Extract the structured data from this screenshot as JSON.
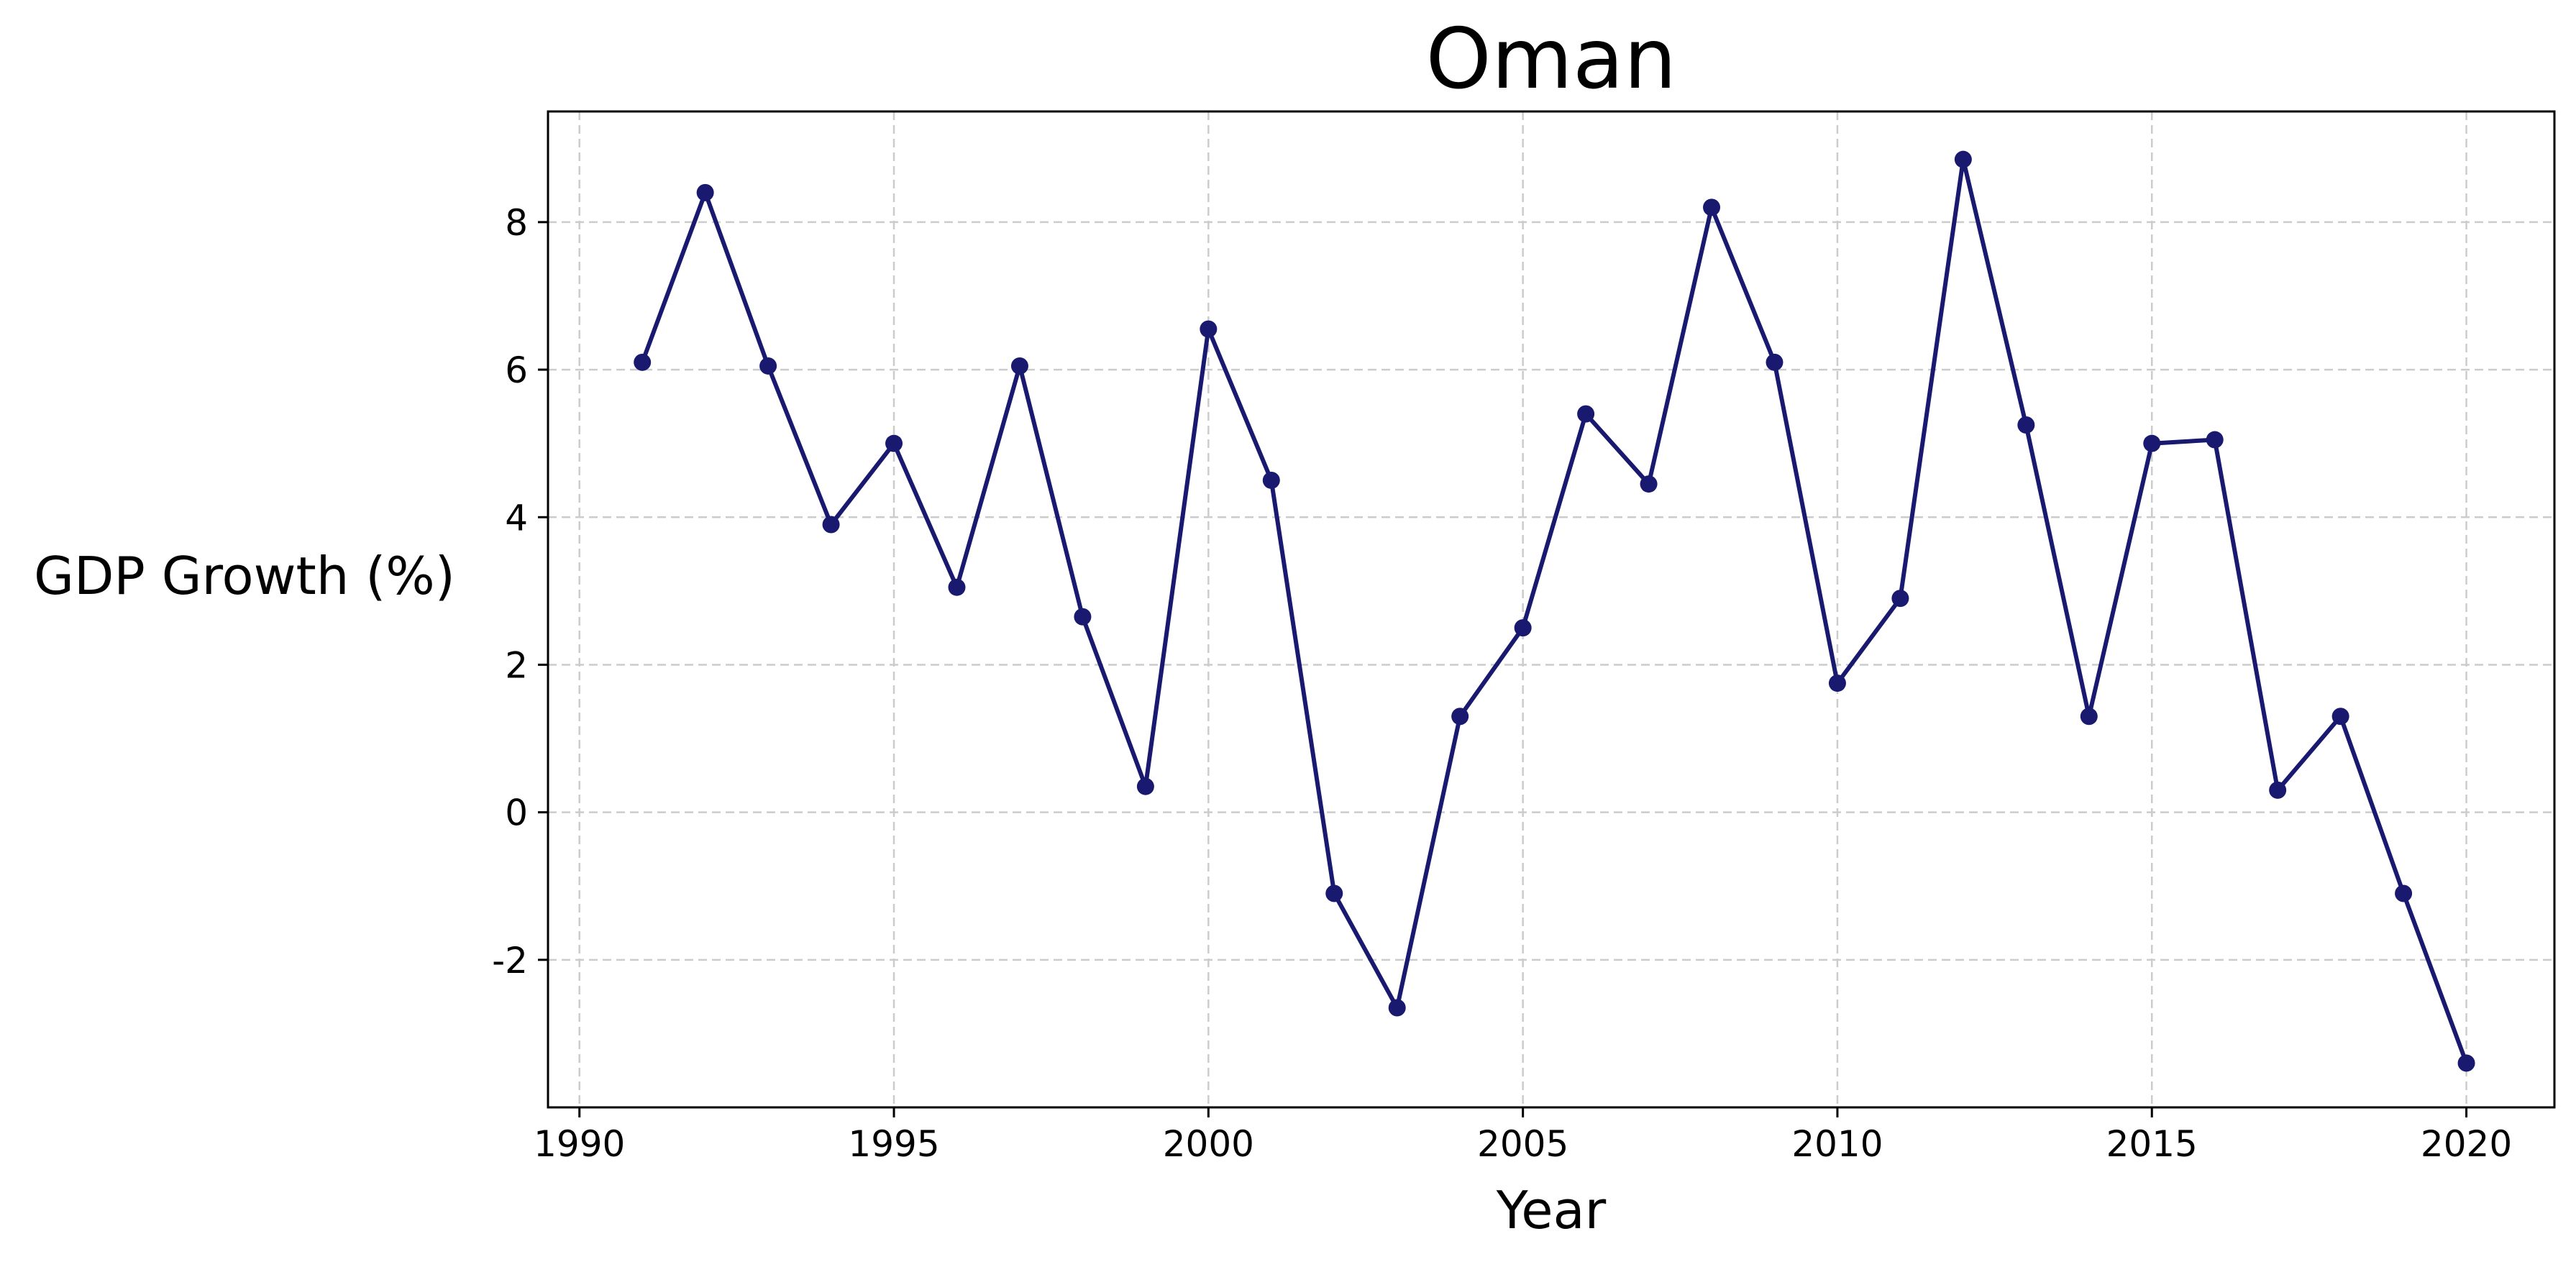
{
  "chart_data": {
    "type": "line",
    "title": "Oman",
    "xlabel": "Year",
    "ylabel": "GDP Growth (%)",
    "xlim": [
      1989.5,
      2021.4
    ],
    "ylim": [
      -4.0,
      9.5
    ],
    "xticks": [
      1990,
      1995,
      2000,
      2005,
      2010,
      2015,
      2020
    ],
    "xtick_labels": [
      "1990",
      "1995",
      "2000",
      "2005",
      "2010",
      "2015",
      "2020"
    ],
    "yticks": [
      -2,
      0,
      2,
      4,
      6,
      8
    ],
    "ytick_labels": [
      "-2",
      "0",
      "2",
      "4",
      "6",
      "8"
    ],
    "grid": true,
    "legend": "none",
    "series": [
      {
        "color": "#191970",
        "x": [
          1991,
          1992,
          1993,
          1994,
          1995,
          1996,
          1997,
          1998,
          1999,
          2000,
          2001,
          2002,
          2003,
          2004,
          2005,
          2006,
          2007,
          2008,
          2009,
          2010,
          2011,
          2012,
          2013,
          2014,
          2015,
          2016,
          2017,
          2018,
          2019,
          2020
        ],
        "y": [
          6.1,
          8.4,
          6.05,
          3.9,
          5.0,
          3.05,
          6.05,
          2.65,
          0.35,
          6.55,
          4.5,
          -1.1,
          -2.65,
          1.3,
          2.5,
          5.4,
          4.45,
          8.2,
          6.1,
          1.75,
          2.9,
          8.85,
          5.25,
          1.3,
          5.0,
          5.05,
          0.3,
          1.3,
          -1.1,
          -3.4
        ]
      }
    ]
  }
}
